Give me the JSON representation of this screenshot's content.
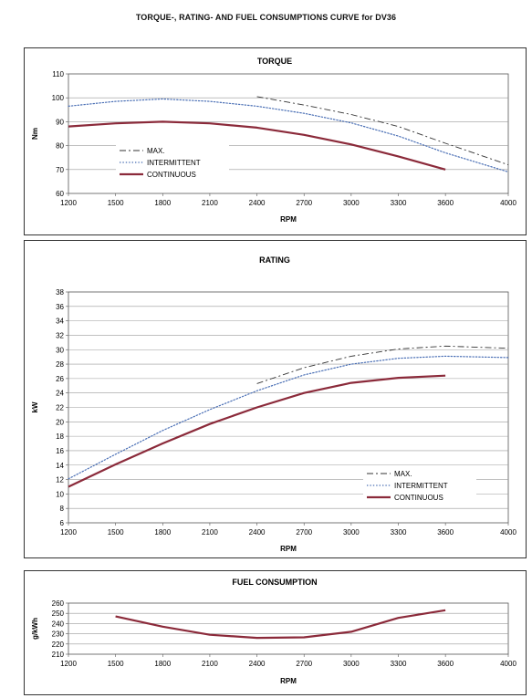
{
  "page": {
    "title": "TORQUE-, RATING- AND FUEL CONSUMPTIONS CURVE for DV36"
  },
  "chart_data": [
    {
      "type": "line",
      "title": "TORQUE",
      "xlabel": "RPM",
      "ylabel": "Nm",
      "xlim": [
        1200,
        4000
      ],
      "ylim": [
        60,
        110
      ],
      "xticks": [
        "1200",
        "1500",
        "1800",
        "2100",
        "2400",
        "2700",
        "3000",
        "3300",
        "3600",
        "4000"
      ],
      "yticks": [
        "60",
        "70",
        "80",
        "90",
        "100",
        "110"
      ],
      "grid": true,
      "legend": "bottom-left",
      "series": [
        {
          "name": "MAX.",
          "style": "dash-dot",
          "color": "#333333",
          "x": [
            2400,
            2700,
            3000,
            3300,
            3600,
            4000
          ],
          "y": [
            100.5,
            97,
            93,
            88,
            81,
            72
          ]
        },
        {
          "name": "INTERMITTENT",
          "style": "dotted",
          "color": "#4a6fb5",
          "x": [
            1200,
            1500,
            1800,
            2100,
            2400,
            2700,
            3000,
            3300,
            3600,
            4000
          ],
          "y": [
            96.5,
            98.5,
            99.5,
            98.5,
            96.5,
            93.5,
            89.5,
            84,
            77,
            69
          ]
        },
        {
          "name": "CONTINUOUS",
          "style": "solid",
          "color": "#8b2a3a",
          "x": [
            1200,
            1500,
            1800,
            2100,
            2400,
            2700,
            3000,
            3300,
            3600
          ],
          "y": [
            88,
            89.3,
            90,
            89.3,
            87.5,
            84.5,
            80.5,
            75.5,
            70
          ]
        }
      ]
    },
    {
      "type": "line",
      "title": "RATING",
      "xlabel": "RPM",
      "ylabel": "kW",
      "xlim": [
        1200,
        4000
      ],
      "ylim": [
        6,
        38
      ],
      "xticks": [
        "1200",
        "1500",
        "1800",
        "2100",
        "2400",
        "2700",
        "3000",
        "3300",
        "3600",
        "4000"
      ],
      "yticks": [
        "6",
        "8",
        "10",
        "12",
        "14",
        "16",
        "18",
        "20",
        "22",
        "24",
        "26",
        "28",
        "30",
        "32",
        "34",
        "36",
        "38"
      ],
      "grid": true,
      "legend": "bottom-right",
      "series": [
        {
          "name": "MAX.",
          "style": "dash-dot",
          "color": "#333333",
          "x": [
            2400,
            2700,
            3000,
            3300,
            3600,
            4000
          ],
          "y": [
            25.3,
            27.5,
            29.1,
            30.1,
            30.5,
            30.2
          ]
        },
        {
          "name": "INTERMITTENT",
          "style": "dotted",
          "color": "#4a6fb5",
          "x": [
            1200,
            1500,
            1800,
            2100,
            2400,
            2700,
            3000,
            3300,
            3600,
            4000
          ],
          "y": [
            12.1,
            15.5,
            18.8,
            21.7,
            24.3,
            26.5,
            28.0,
            28.8,
            29.1,
            28.9
          ]
        },
        {
          "name": "CONTINUOUS",
          "style": "solid",
          "color": "#8b2a3a",
          "x": [
            1200,
            1500,
            1800,
            2100,
            2400,
            2700,
            3000,
            3300,
            3600
          ],
          "y": [
            11.0,
            14.1,
            17.0,
            19.7,
            22.0,
            24.0,
            25.4,
            26.1,
            26.4
          ]
        }
      ]
    },
    {
      "type": "line",
      "title": "FUEL CONSUMPTION",
      "xlabel": "RPM",
      "ylabel": "g/kWh",
      "xlim": [
        1200,
        4000
      ],
      "ylim": [
        210,
        260
      ],
      "xticks": [
        "1200",
        "1500",
        "1800",
        "2100",
        "2400",
        "2700",
        "3000",
        "3300",
        "3600",
        "4000"
      ],
      "yticks": [
        "210",
        "220",
        "230",
        "240",
        "250",
        "260"
      ],
      "grid": true,
      "series": [
        {
          "style": "solid",
          "color": "#8b2a3a",
          "x": [
            1500,
            1800,
            2100,
            2400,
            2700,
            3000,
            3300,
            3600
          ],
          "y": [
            247,
            237,
            229,
            226,
            226.5,
            232,
            245.5,
            253
          ]
        }
      ]
    }
  ]
}
